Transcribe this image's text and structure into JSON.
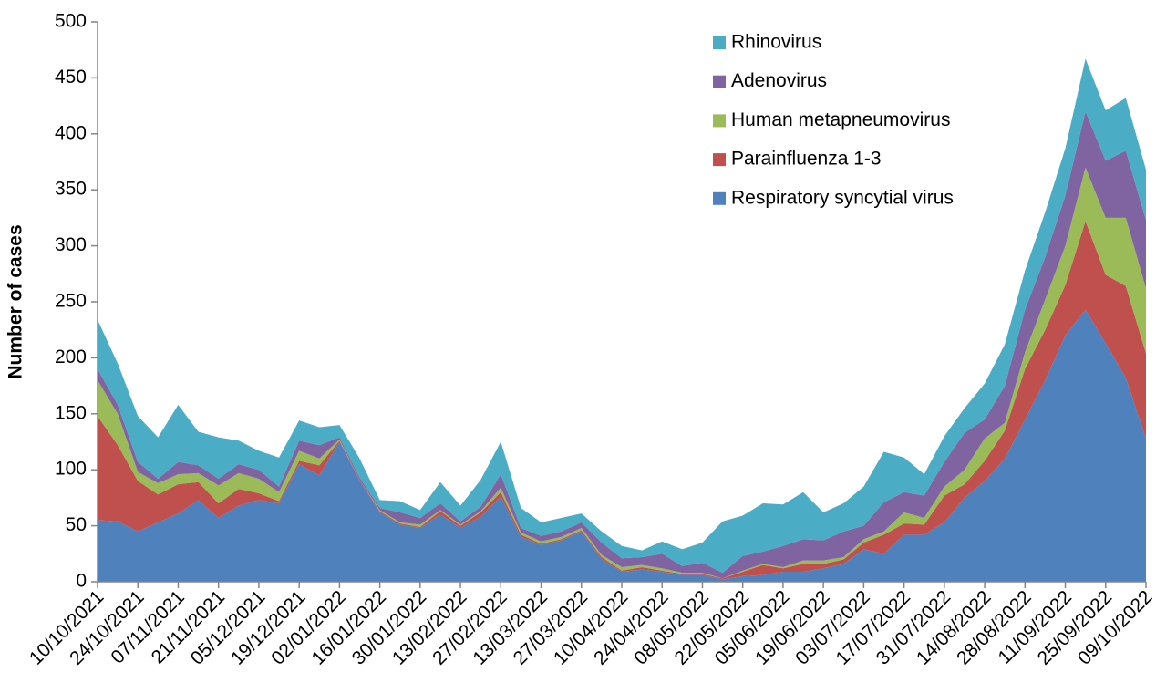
{
  "chart_data": {
    "type": "stacked-area",
    "y_label": "Number of cases",
    "categories": [
      "10/10/2021",
      null,
      "24/10/2021",
      null,
      "07/11/2021",
      null,
      "21/11/2021",
      null,
      "05/12/2021",
      null,
      "19/12/2021",
      null,
      "02/01/2022",
      null,
      "16/01/2022",
      null,
      "30/01/2022",
      null,
      "13/02/2022",
      null,
      "27/02/2022",
      null,
      "13/03/2022",
      null,
      "27/03/2022",
      null,
      "10/04/2022",
      null,
      "24/04/2022",
      null,
      "08/05/2022",
      null,
      "22/05/2022",
      null,
      "05/06/2022",
      null,
      "19/06/2022",
      null,
      "03/07/2022",
      null,
      "17/07/2022",
      null,
      "31/07/2022",
      null,
      "14/08/2022",
      null,
      "28/08/2022",
      null,
      "11/09/2022",
      null,
      "25/09/2022",
      null,
      "09/10/2022"
    ],
    "series": [
      {
        "name": "Respiratory syncytial virus",
        "color": "#4f81bd",
        "values": [
          55,
          54,
          45,
          53,
          61,
          73,
          57,
          68,
          73,
          70,
          105,
          95,
          125,
          90,
          62,
          51,
          48,
          60,
          48,
          58,
          76,
          40,
          33,
          37,
          45,
          20,
          9,
          11,
          9,
          6,
          6,
          2,
          5,
          6,
          9,
          9,
          12,
          16,
          29,
          25,
          42,
          42,
          53,
          75,
          90,
          110,
          145,
          180,
          220,
          243,
          213,
          182,
          128
        ]
      },
      {
        "name": "Parainfluenza 1-3",
        "color": "#c0504d",
        "values": [
          93,
          68,
          45,
          25,
          26,
          16,
          13,
          15,
          6,
          2,
          3,
          9,
          1,
          1,
          1,
          1,
          1,
          3,
          2,
          4,
          4,
          2,
          1,
          1,
          1,
          2,
          1,
          2,
          1,
          1,
          1,
          1,
          4,
          9,
          3,
          7,
          4,
          4,
          6,
          17,
          10,
          9,
          24,
          12,
          18,
          25,
          45,
          45,
          45,
          79,
          61,
          82,
          76
        ]
      },
      {
        "name": "Human metapneumovirus",
        "color": "#9bbb59",
        "values": [
          32,
          28,
          8,
          10,
          9,
          8,
          16,
          14,
          13,
          8,
          9,
          6,
          1,
          0,
          1,
          1,
          2,
          1,
          1,
          1,
          4,
          2,
          2,
          2,
          2,
          2,
          3,
          2,
          2,
          1,
          1,
          0,
          1,
          1,
          1,
          3,
          3,
          2,
          3,
          3,
          10,
          6,
          8,
          13,
          20,
          7,
          15,
          27,
          35,
          48,
          51,
          61,
          58
        ]
      },
      {
        "name": "Adenovirus",
        "color": "#8064a2",
        "values": [
          10,
          8,
          9,
          4,
          11,
          7,
          6,
          8,
          8,
          5,
          9,
          12,
          2,
          2,
          2,
          9,
          6,
          6,
          3,
          4,
          12,
          4,
          5,
          5,
          5,
          11,
          8,
          7,
          13,
          6,
          9,
          5,
          13,
          11,
          19,
          19,
          18,
          23,
          12,
          26,
          18,
          20,
          22,
          33,
          17,
          33,
          38,
          38,
          45,
          50,
          51,
          60,
          61
        ]
      },
      {
        "name": "Rhinovirus",
        "color": "#4bacc6",
        "values": [
          44,
          37,
          41,
          37,
          51,
          30,
          37,
          21,
          17,
          26,
          18,
          16,
          11,
          17,
          7,
          10,
          7,
          19,
          14,
          24,
          29,
          18,
          12,
          12,
          8,
          10,
          11,
          6,
          11,
          15,
          18,
          46,
          36,
          43,
          37,
          42,
          25,
          25,
          35,
          45,
          31,
          19,
          23,
          22,
          32,
          37,
          35,
          40,
          42,
          47,
          45,
          47,
          45
        ]
      }
    ],
    "ylim": [
      0,
      500
    ],
    "yticks": [
      0,
      50,
      100,
      150,
      200,
      250,
      300,
      350,
      400,
      450,
      500
    ],
    "legend": "upper right"
  }
}
